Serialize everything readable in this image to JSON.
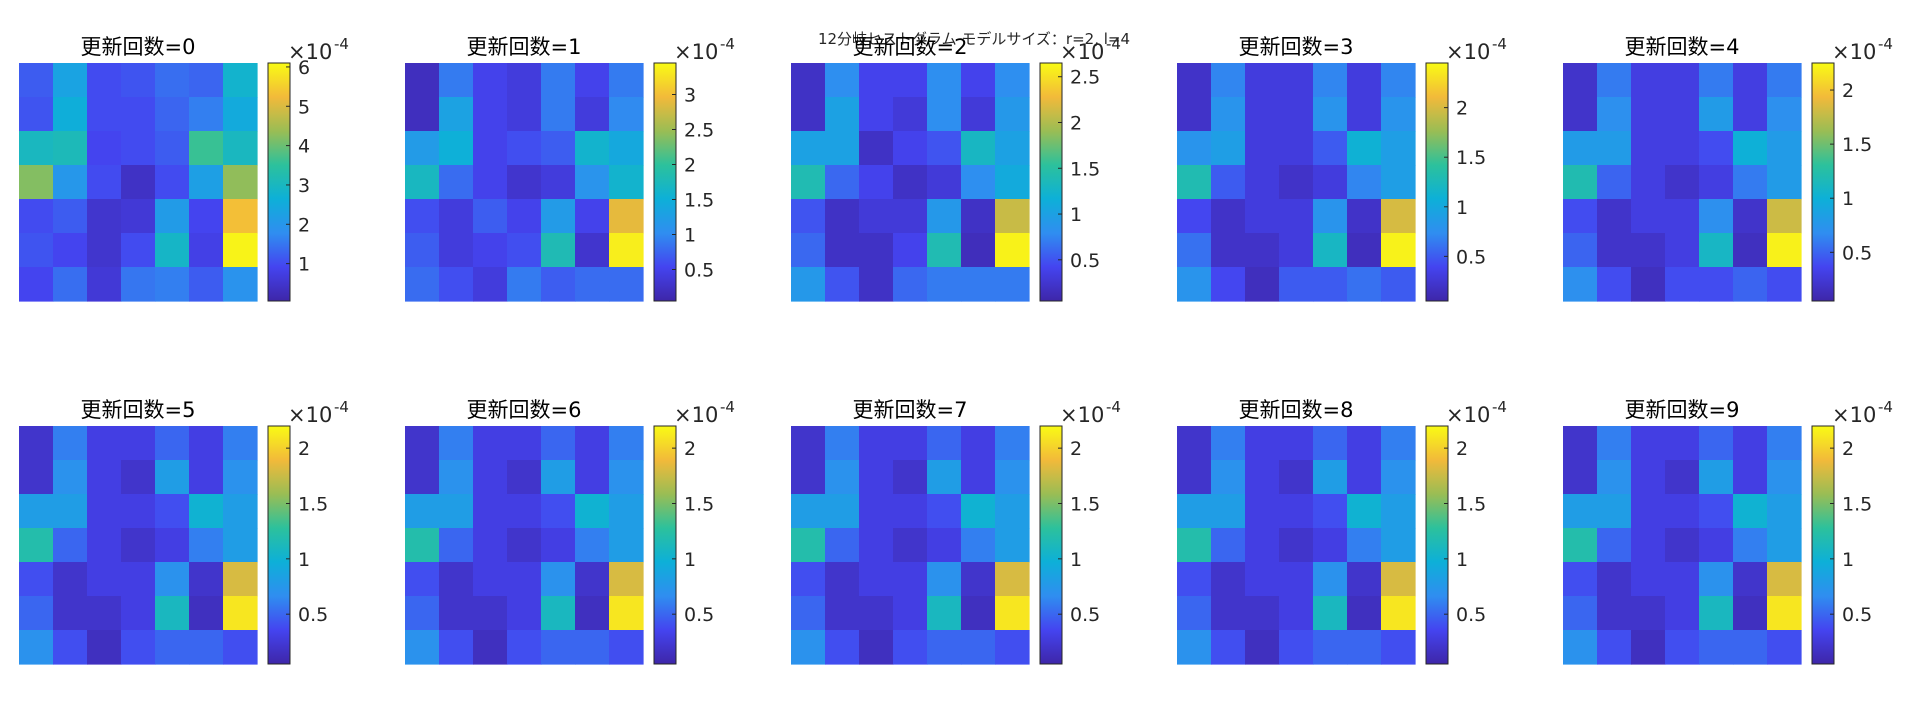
{
  "figure": {
    "suptitle": "12分岐ヒストグラム モデルサイズ：r=2, l=4",
    "colormap": "parula",
    "colormap_stops": [
      "#3e26a8",
      "#4444f0",
      "#2f8ef0",
      "#0db0d8",
      "#2cc19c",
      "#9abd54",
      "#f2ba3a",
      "#f9fb14"
    ]
  },
  "chart_data": [
    {
      "type": "heatmap",
      "title": "更新回数=0",
      "multiplier": "×10",
      "exponent": "-4",
      "clim": [
        0.05,
        6.1
      ],
      "colorbar_ticks": [
        "1",
        "2",
        "3",
        "4",
        "5",
        "6"
      ],
      "colorbar_tick_values": [
        1,
        2,
        3,
        4,
        5,
        6
      ],
      "values": [
        [
          1.2,
          2.3,
          1.0,
          1.1,
          1.4,
          1.3,
          2.8
        ],
        [
          1.1,
          2.6,
          1.0,
          1.0,
          1.3,
          1.6,
          2.5
        ],
        [
          3.0,
          3.1,
          0.9,
          1.0,
          1.2,
          3.6,
          3.0
        ],
        [
          4.2,
          2.0,
          1.0,
          0.4,
          1.0,
          2.2,
          4.3
        ],
        [
          1.0,
          1.2,
          0.5,
          0.6,
          2.1,
          0.9,
          5.3
        ],
        [
          1.1,
          0.9,
          0.5,
          1.0,
          2.9,
          0.8,
          6.0
        ],
        [
          0.9,
          1.4,
          0.6,
          1.5,
          1.6,
          1.2,
          1.9
        ]
      ]
    },
    {
      "type": "heatmap",
      "title": "更新回数=1",
      "multiplier": "×10",
      "exponent": "-4",
      "clim": [
        0.05,
        3.45
      ],
      "colorbar_ticks": [
        "0.5",
        "1",
        "1.5",
        "2",
        "2.5",
        "3"
      ],
      "colorbar_tick_values": [
        0.5,
        1,
        1.5,
        2,
        2.5,
        3
      ],
      "values": [
        [
          0.2,
          0.9,
          0.5,
          0.4,
          0.9,
          0.5,
          0.9
        ],
        [
          0.2,
          1.3,
          0.5,
          0.4,
          0.9,
          0.4,
          1.0
        ],
        [
          1.2,
          1.5,
          0.5,
          0.6,
          0.7,
          1.6,
          1.4
        ],
        [
          1.7,
          0.8,
          0.5,
          0.3,
          0.4,
          1.1,
          1.6
        ],
        [
          0.6,
          0.4,
          0.7,
          0.5,
          1.2,
          0.5,
          2.9
        ],
        [
          0.7,
          0.4,
          0.5,
          0.6,
          1.8,
          0.3,
          3.35
        ],
        [
          0.8,
          0.6,
          0.4,
          0.9,
          0.7,
          0.8,
          0.8
        ]
      ]
    },
    {
      "type": "heatmap",
      "title": "更新回数=2",
      "multiplier": "×10",
      "exponent": "-4",
      "clim": [
        0.05,
        2.65
      ],
      "colorbar_ticks": [
        "0.5",
        "1",
        "1.5",
        "2",
        "2.5"
      ],
      "colorbar_tick_values": [
        0.5,
        1,
        1.5,
        2,
        2.5
      ],
      "values": [
        [
          0.2,
          0.8,
          0.4,
          0.4,
          0.8,
          0.4,
          0.8
        ],
        [
          0.2,
          1.0,
          0.4,
          0.3,
          0.8,
          0.3,
          0.9
        ],
        [
          1.0,
          1.0,
          0.2,
          0.4,
          0.5,
          1.3,
          1.0
        ],
        [
          1.4,
          0.6,
          0.4,
          0.2,
          0.3,
          0.8,
          1.1
        ],
        [
          0.5,
          0.2,
          0.3,
          0.3,
          0.9,
          0.2,
          2.1
        ],
        [
          0.6,
          0.2,
          0.2,
          0.4,
          1.4,
          0.15,
          2.6
        ],
        [
          0.9,
          0.5,
          0.2,
          0.6,
          0.7,
          0.7,
          0.7
        ]
      ]
    },
    {
      "type": "heatmap",
      "title": "更新回数=3",
      "multiplier": "×10",
      "exponent": "-4",
      "clim": [
        0.05,
        2.45
      ],
      "colorbar_ticks": [
        "0.5",
        "1",
        "1.5",
        "2"
      ],
      "colorbar_tick_values": [
        0.5,
        1,
        1.5,
        2
      ],
      "values": [
        [
          0.2,
          0.7,
          0.3,
          0.3,
          0.7,
          0.3,
          0.7
        ],
        [
          0.2,
          0.8,
          0.3,
          0.3,
          0.8,
          0.3,
          0.8
        ],
        [
          0.8,
          0.9,
          0.3,
          0.3,
          0.5,
          1.1,
          0.9
        ],
        [
          1.3,
          0.5,
          0.3,
          0.2,
          0.3,
          0.7,
          0.9
        ],
        [
          0.4,
          0.2,
          0.3,
          0.3,
          0.8,
          0.2,
          2.0
        ],
        [
          0.6,
          0.2,
          0.2,
          0.3,
          1.2,
          0.15,
          2.4
        ],
        [
          0.8,
          0.4,
          0.15,
          0.5,
          0.5,
          0.6,
          0.5
        ]
      ]
    },
    {
      "type": "heatmap",
      "title": "更新回数=4",
      "multiplier": "×10",
      "exponent": "-4",
      "clim": [
        0.05,
        2.25
      ],
      "colorbar_ticks": [
        "0.5",
        "1",
        "1.5",
        "2"
      ],
      "colorbar_tick_values": [
        0.5,
        1,
        1.5,
        2
      ],
      "values": [
        [
          0.2,
          0.6,
          0.3,
          0.3,
          0.6,
          0.3,
          0.6
        ],
        [
          0.2,
          0.7,
          0.3,
          0.3,
          0.8,
          0.3,
          0.7
        ],
        [
          0.8,
          0.8,
          0.3,
          0.3,
          0.4,
          1.0,
          0.8
        ],
        [
          1.2,
          0.5,
          0.3,
          0.2,
          0.3,
          0.6,
          0.8
        ],
        [
          0.4,
          0.2,
          0.3,
          0.3,
          0.7,
          0.2,
          1.8
        ],
        [
          0.5,
          0.2,
          0.2,
          0.3,
          1.1,
          0.15,
          2.2
        ],
        [
          0.7,
          0.4,
          0.15,
          0.4,
          0.4,
          0.5,
          0.4
        ]
      ]
    },
    {
      "type": "heatmap",
      "title": "更新回数=5",
      "multiplier": "×10",
      "exponent": "-4",
      "clim": [
        0.05,
        2.2
      ],
      "colorbar_ticks": [
        "0.5",
        "1",
        "1.5",
        "2"
      ],
      "colorbar_tick_values": [
        0.5,
        1,
        1.5,
        2
      ],
      "values": [
        [
          0.2,
          0.6,
          0.3,
          0.3,
          0.5,
          0.3,
          0.6
        ],
        [
          0.2,
          0.7,
          0.3,
          0.2,
          0.8,
          0.3,
          0.7
        ],
        [
          0.8,
          0.8,
          0.3,
          0.3,
          0.4,
          1.0,
          0.8
        ],
        [
          1.2,
          0.5,
          0.3,
          0.2,
          0.3,
          0.6,
          0.8
        ],
        [
          0.4,
          0.2,
          0.3,
          0.3,
          0.7,
          0.2,
          1.8
        ],
        [
          0.5,
          0.2,
          0.2,
          0.3,
          1.1,
          0.15,
          2.1
        ],
        [
          0.7,
          0.4,
          0.15,
          0.4,
          0.5,
          0.5,
          0.4
        ]
      ]
    },
    {
      "type": "heatmap",
      "title": "更新回数=6",
      "multiplier": "×10",
      "exponent": "-4",
      "clim": [
        0.05,
        2.2
      ],
      "colorbar_ticks": [
        "0.5",
        "1",
        "1.5",
        "2"
      ],
      "colorbar_tick_values": [
        0.5,
        1,
        1.5,
        2
      ],
      "values": [
        [
          0.2,
          0.6,
          0.3,
          0.3,
          0.5,
          0.3,
          0.6
        ],
        [
          0.2,
          0.7,
          0.3,
          0.2,
          0.8,
          0.3,
          0.7
        ],
        [
          0.8,
          0.8,
          0.3,
          0.3,
          0.4,
          1.0,
          0.8
        ],
        [
          1.2,
          0.5,
          0.3,
          0.2,
          0.3,
          0.6,
          0.8
        ],
        [
          0.4,
          0.2,
          0.3,
          0.3,
          0.7,
          0.2,
          1.8
        ],
        [
          0.5,
          0.2,
          0.2,
          0.3,
          1.1,
          0.15,
          2.1
        ],
        [
          0.7,
          0.4,
          0.15,
          0.4,
          0.5,
          0.5,
          0.4
        ]
      ]
    },
    {
      "type": "heatmap",
      "title": "更新回数=7",
      "multiplier": "×10",
      "exponent": "-4",
      "clim": [
        0.05,
        2.2
      ],
      "colorbar_ticks": [
        "0.5",
        "1",
        "1.5",
        "2"
      ],
      "colorbar_tick_values": [
        0.5,
        1,
        1.5,
        2
      ],
      "values": [
        [
          0.2,
          0.6,
          0.3,
          0.3,
          0.5,
          0.3,
          0.6
        ],
        [
          0.2,
          0.7,
          0.3,
          0.2,
          0.8,
          0.3,
          0.7
        ],
        [
          0.8,
          0.8,
          0.3,
          0.3,
          0.4,
          1.0,
          0.8
        ],
        [
          1.2,
          0.5,
          0.3,
          0.2,
          0.3,
          0.6,
          0.8
        ],
        [
          0.4,
          0.2,
          0.3,
          0.3,
          0.7,
          0.2,
          1.8
        ],
        [
          0.5,
          0.2,
          0.2,
          0.3,
          1.1,
          0.15,
          2.1
        ],
        [
          0.7,
          0.4,
          0.15,
          0.4,
          0.5,
          0.5,
          0.4
        ]
      ]
    },
    {
      "type": "heatmap",
      "title": "更新回数=8",
      "multiplier": "×10",
      "exponent": "-4",
      "clim": [
        0.05,
        2.2
      ],
      "colorbar_ticks": [
        "0.5",
        "1",
        "1.5",
        "2"
      ],
      "colorbar_tick_values": [
        0.5,
        1,
        1.5,
        2
      ],
      "values": [
        [
          0.2,
          0.6,
          0.3,
          0.3,
          0.5,
          0.3,
          0.6
        ],
        [
          0.2,
          0.7,
          0.3,
          0.2,
          0.8,
          0.3,
          0.7
        ],
        [
          0.8,
          0.8,
          0.3,
          0.3,
          0.4,
          1.0,
          0.8
        ],
        [
          1.2,
          0.5,
          0.3,
          0.2,
          0.3,
          0.6,
          0.8
        ],
        [
          0.4,
          0.2,
          0.3,
          0.3,
          0.7,
          0.2,
          1.8
        ],
        [
          0.5,
          0.2,
          0.2,
          0.3,
          1.1,
          0.15,
          2.1
        ],
        [
          0.7,
          0.4,
          0.15,
          0.4,
          0.5,
          0.5,
          0.4
        ]
      ]
    },
    {
      "type": "heatmap",
      "title": "更新回数=9",
      "multiplier": "×10",
      "exponent": "-4",
      "clim": [
        0.05,
        2.2
      ],
      "colorbar_ticks": [
        "0.5",
        "1",
        "1.5",
        "2"
      ],
      "colorbar_tick_values": [
        0.5,
        1,
        1.5,
        2
      ],
      "values": [
        [
          0.2,
          0.6,
          0.3,
          0.3,
          0.5,
          0.3,
          0.6
        ],
        [
          0.2,
          0.7,
          0.3,
          0.2,
          0.8,
          0.3,
          0.7
        ],
        [
          0.8,
          0.8,
          0.3,
          0.3,
          0.4,
          1.0,
          0.8
        ],
        [
          1.2,
          0.5,
          0.3,
          0.2,
          0.3,
          0.6,
          0.8
        ],
        [
          0.4,
          0.2,
          0.3,
          0.3,
          0.7,
          0.2,
          1.8
        ],
        [
          0.5,
          0.2,
          0.2,
          0.3,
          1.1,
          0.15,
          2.1
        ],
        [
          0.7,
          0.4,
          0.15,
          0.4,
          0.5,
          0.5,
          0.4
        ]
      ]
    }
  ]
}
